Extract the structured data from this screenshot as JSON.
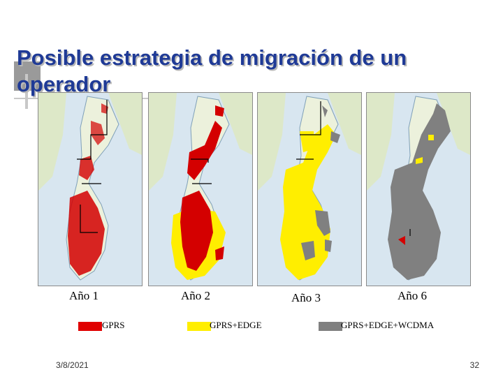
{
  "slide": {
    "title": "Posible estrategia de migración de un operador",
    "date": "3/8/2021",
    "page_number": "32"
  },
  "maps": [
    {
      "year_label": "Año 1",
      "coverage": "GPRS"
    },
    {
      "year_label": "Año 2",
      "coverage": "GPRS + GPRS+EDGE"
    },
    {
      "year_label": "Año 3",
      "coverage": "GPRS+EDGE + GPRS+EDGE+WCDMA"
    },
    {
      "year_label": "Año 6",
      "coverage": "GPRS+EDGE+WCDMA"
    }
  ],
  "legend": [
    {
      "label": "GPRS",
      "color": "#e00000"
    },
    {
      "label": "GPRS+EDGE",
      "color": "#ffee00"
    },
    {
      "label": "GPRS+EDGE+WCDMA",
      "color": "#808080"
    }
  ],
  "colors": {
    "title": "#1f3a96",
    "sea": "#d8e6f0",
    "land": "#ecf1dc",
    "gprs": "#e00000",
    "edge": "#ffee00",
    "wcdma": "#808080"
  }
}
